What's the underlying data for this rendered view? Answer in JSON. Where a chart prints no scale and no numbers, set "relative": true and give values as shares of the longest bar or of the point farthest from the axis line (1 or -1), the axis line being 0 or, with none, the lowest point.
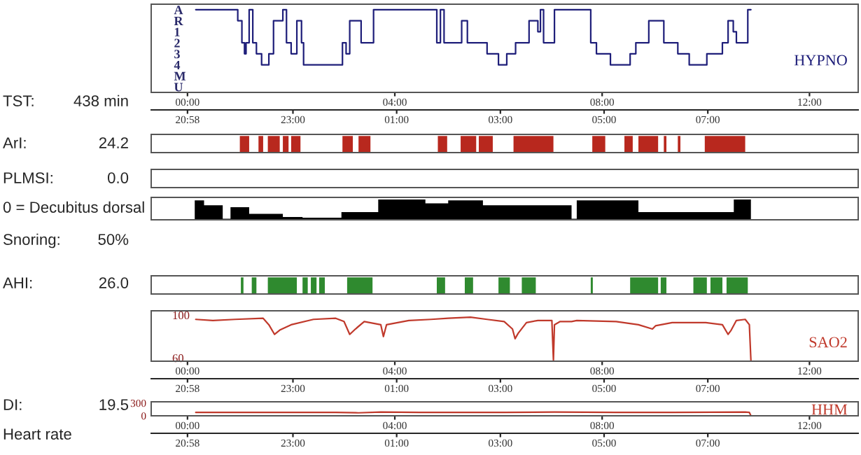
{
  "chart_data": [
    {
      "type": "step",
      "title": "HYPNO",
      "annotations": [
        "TST:",
        "438 min"
      ],
      "color": "#1f1f7a",
      "x": [
        0.16,
        0.97,
        1.05,
        1.1,
        1.13,
        1.19,
        1.26,
        1.33,
        1.43,
        1.57,
        1.66,
        1.84,
        1.91,
        2.0,
        2.11,
        2.2,
        2.24,
        2.99,
        3.06,
        3.13,
        3.35,
        3.59,
        4.81,
        4.88,
        4.95,
        5.29,
        5.4,
        5.78,
        6.0,
        6.16,
        6.33,
        6.59,
        6.76,
        6.81,
        6.87,
        7.08,
        7.78,
        7.89,
        8.16,
        8.54,
        8.65,
        8.9,
        9.19,
        9.46,
        9.68,
        10.02,
        10.32,
        10.43,
        10.53,
        10.59,
        10.81,
        10.87
      ],
      "values": [
        -1,
        0,
        2,
        3,
        2,
        -1,
        2,
        3,
        4,
        3,
        0,
        -1,
        2,
        3,
        0,
        2,
        4,
        2,
        3,
        0,
        2,
        -1,
        2,
        -1,
        2,
        0,
        2,
        3,
        4,
        3,
        2,
        0,
        1,
        -1,
        2,
        -1,
        2,
        3,
        4,
        3,
        2,
        0,
        2,
        3,
        4,
        3,
        2,
        0,
        1,
        2,
        -1,
        -1
      ],
      "ylim": [
        6.5,
        -1.5
      ],
      "yticks": [
        {
          "value": -1,
          "label": "A"
        },
        {
          "value": 0,
          "label": "R"
        },
        1,
        2,
        3,
        4,
        {
          "value": 5,
          "label": "M"
        },
        {
          "value": 6,
          "label": "U"
        }
      ],
      "xlim": [
        -0.7,
        12.94
      ],
      "xticks": [
        {
          "value": 0,
          "label": "00:00"
        },
        {
          "value": 4,
          "label": "04:00"
        },
        {
          "value": 8,
          "label": "08:00"
        },
        {
          "value": 12,
          "label": "12:00"
        }
      ],
      "x2lim": [
        "2000-01-01T20:16",
        "2000-01-02T09:54"
      ],
      "x2ticks": [
        {
          "value": "2000-01-01T20:58",
          "label": "20:58"
        },
        {
          "value": "2000-01-01T23:00",
          "label": "23:00"
        },
        {
          "value": "2000-01-02T01:00",
          "label": "01:00"
        },
        {
          "value": "2000-01-02T03:00",
          "label": "03:00"
        },
        {
          "value": "2000-01-02T05:00",
          "label": "05:00"
        },
        {
          "value": "2000-01-02T07:00",
          "label": "07:00"
        }
      ]
    },
    {
      "type": "area",
      "relative": true,
      "annotations": [
        "ArI:",
        "24.2"
      ],
      "color": "#b8281e",
      "xlim": [
        -0.7,
        12.94
      ],
      "tick_labels": false,
      "x": [
        1.01,
        1.19,
        1.37,
        1.46,
        1.55,
        1.78,
        1.84,
        1.95,
        2.0,
        2.18,
        2.99,
        3.19,
        3.3,
        3.53,
        4.83,
        5.01,
        5.27,
        5.57,
        5.62,
        5.89,
        6.29,
        7.06,
        7.81,
        8.06,
        8.43,
        8.59,
        8.7,
        9.08,
        9.19,
        9.24,
        9.46,
        9.51,
        9.98,
        10.76
      ],
      "values": [
        1,
        0,
        1,
        0,
        1,
        0,
        1,
        0,
        1,
        0,
        1,
        0,
        1,
        0,
        1,
        0,
        1,
        0,
        1,
        0,
        1,
        0,
        1,
        0,
        1,
        0,
        1,
        0,
        1,
        0,
        1,
        0,
        1,
        0
      ]
    },
    {
      "type": "other",
      "annotations": [
        "PLMSI:",
        "0.0"
      ]
    },
    {
      "type": "area",
      "relative": true,
      "annotations": [
        "0 = Decubitus dorsal",
        "Snoring:",
        "50%"
      ],
      "color": "#000000",
      "xlim": [
        -0.7,
        12.94
      ],
      "tick_labels": false,
      "x": [
        0.14,
        0.32,
        0.68,
        0.83,
        1.19,
        1.84,
        2.22,
        2.97,
        3.68,
        4.59,
        5.03,
        5.7,
        7.41,
        7.51,
        8.7,
        10.54,
        10.87
      ],
      "values": [
        0.95,
        0.71,
        0.05,
        0.62,
        0.29,
        0.14,
        0.1,
        0.38,
        1.0,
        0.81,
        0.95,
        0.71,
        0.05,
        0.95,
        0.38,
        1.0,
        1.0
      ]
    },
    {
      "type": "area",
      "relative": true,
      "annotations": [
        "AHI:",
        "26.0"
      ],
      "color": "#2f8a2f",
      "xlim": [
        -0.7,
        12.94
      ],
      "tick_labels": false,
      "x": [
        1.03,
        1.08,
        1.24,
        1.33,
        1.55,
        2.11,
        2.22,
        2.32,
        2.38,
        2.49,
        2.54,
        2.65,
        3.08,
        3.57,
        4.81,
        4.97,
        5.35,
        5.51,
        6.0,
        6.22,
        6.45,
        6.72,
        7.78,
        7.82,
        8.54,
        9.08,
        9.13,
        9.24,
        9.76,
        10.02,
        10.09,
        10.32,
        10.4,
        10.81
      ],
      "values": [
        1,
        0,
        1,
        0,
        1,
        0,
        1,
        0,
        1,
        0,
        1,
        0,
        1,
        0,
        1,
        0,
        1,
        0,
        1,
        0,
        1,
        0,
        1,
        0,
        1,
        0,
        1,
        0,
        1,
        0,
        1,
        0,
        1,
        0
      ]
    },
    {
      "type": "line",
      "title": "SAO2",
      "annotations": [
        "DI:",
        "19.5"
      ],
      "color": "#c0392b",
      "x": [
        0.16,
        0.49,
        0.92,
        1.46,
        1.57,
        1.68,
        1.78,
        2.0,
        2.43,
        2.86,
        3.02,
        3.13,
        3.24,
        3.41,
        3.73,
        3.78,
        3.84,
        4.27,
        4.7,
        5.03,
        5.46,
        5.78,
        6.11,
        6.27,
        6.32,
        6.38,
        6.54,
        6.76,
        7.03,
        7.06,
        7.08,
        7.19,
        7.41,
        7.51,
        8.27,
        8.7,
        8.97,
        9.03,
        9.35,
        10.0,
        10.32,
        10.43,
        10.49,
        10.59,
        10.76,
        10.84,
        10.87
      ],
      "values": [
        96,
        95,
        96,
        97,
        91,
        82,
        86,
        91,
        96,
        97,
        94,
        82,
        87,
        94,
        91,
        80,
        91,
        95,
        96,
        97,
        98,
        96,
        94,
        87,
        78,
        83,
        93,
        95,
        95,
        58,
        91,
        94,
        94,
        95,
        94,
        91,
        87,
        90,
        93,
        93,
        91,
        82,
        86,
        95,
        96,
        91,
        58
      ],
      "xlim": [
        -0.7,
        12.94
      ],
      "ylim": [
        57,
        104
      ],
      "yticks": [
        60,
        100
      ],
      "xticks": [
        {
          "value": 0,
          "label": "00:00"
        },
        {
          "value": 4,
          "label": "04:00"
        },
        {
          "value": 8,
          "label": "08:00"
        },
        {
          "value": 12,
          "label": "12:00"
        }
      ],
      "x2lim": [
        "2000-01-01T20:16",
        "2000-01-02T09:54"
      ],
      "x2ticks": [
        {
          "value": "2000-01-01T20:58",
          "label": "20:58"
        },
        {
          "value": "2000-01-01T23:00",
          "label": "23:00"
        },
        {
          "value": "2000-01-02T01:00",
          "label": "01:00"
        },
        {
          "value": "2000-01-02T03:00",
          "label": "03:00"
        },
        {
          "value": "2000-01-02T05:00",
          "label": "05:00"
        },
        {
          "value": "2000-01-02T07:00",
          "label": "07:00"
        }
      ]
    },
    {
      "type": "line",
      "title": "HHM",
      "annotations": [
        "Heart rate"
      ],
      "color": "#c0392b",
      "x": [
        0.16,
        1.78,
        2.86,
        3.3,
        3.73,
        4.49,
        6.11,
        7.08,
        8.27,
        9.35,
        10.76,
        10.84,
        10.87
      ],
      "values": [
        80,
        80,
        80,
        70,
        90,
        80,
        80,
        90,
        80,
        80,
        90,
        80,
        0
      ],
      "xlim": [
        -0.7,
        12.94
      ],
      "ylim": [
        0,
        330
      ],
      "yticks": [
        0,
        300
      ],
      "xticks": [
        {
          "value": 0,
          "label": "00:00"
        },
        {
          "value": 4,
          "label": "04:00"
        },
        {
          "value": 8,
          "label": "08:00"
        },
        {
          "value": 12,
          "label": "12:00"
        }
      ],
      "x2lim": [
        "2000-01-01T20:16",
        "2000-01-02T09:54"
      ],
      "x2ticks": [
        {
          "value": "2000-01-01T20:58",
          "label": "20:58"
        },
        {
          "value": "2000-01-01T23:00",
          "label": "23:00"
        },
        {
          "value": "2000-01-02T01:00",
          "label": "01:00"
        },
        {
          "value": "2000-01-02T03:00",
          "label": "03:00"
        },
        {
          "value": "2000-01-02T05:00",
          "label": "05:00"
        },
        {
          "value": "2000-01-02T07:00",
          "label": "07:00"
        }
      ]
    }
  ]
}
